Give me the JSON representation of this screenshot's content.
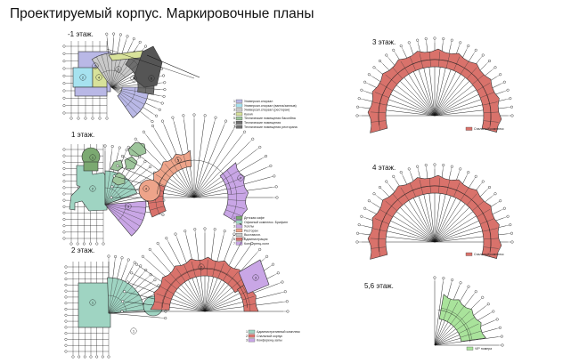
{
  "title": "Проектируемый корпус. Маркировочные планы",
  "colors": {
    "blue": "#b9b8e6",
    "cyan": "#a6e2ef",
    "gray": "#c9c9c9",
    "yellowgreen": "#d8e29a",
    "darkgray": "#6e6e6e",
    "dkgreen": "#7ba971",
    "teal": "#9fd4c2",
    "sage": "#9dc59b",
    "salmon": "#eea48a",
    "red": "#d9726b",
    "purple": "#c9a6e6",
    "lightgreen": "#a9e39b"
  },
  "floors": [
    {
      "id": "m1",
      "label": "-1 этаж.",
      "legend": [
        {
          "num": "1",
          "text": "Универсал.спорзал",
          "color": "blue"
        },
        {
          "num": "2",
          "text": "Универсал.спорзал (ванна/заплыв)",
          "color": "cyan"
        },
        {
          "num": "3",
          "text": "Универсал.спорзал (ресторан)",
          "color": "gray"
        },
        {
          "num": "4",
          "text": "Кухня",
          "color": "yellowgreen"
        },
        {
          "num": "5",
          "text": "Технические помещения бассейна",
          "color": "sage"
        },
        {
          "num": "6",
          "text": "Технические помещения",
          "color": "darkgray"
        },
        {
          "num": "7",
          "text": "Технические помещения ресторана",
          "color": "darkgray"
        }
      ]
    },
    {
      "id": "f1",
      "label": "1 этаж.",
      "legend": [
        {
          "num": "1",
          "text": "Детская кафе",
          "color": "dkgreen"
        },
        {
          "num": "2",
          "text": "Офисный комплекс. Брифинг",
          "color": "teal"
        },
        {
          "num": "3",
          "text": "Холлы",
          "color": "purple"
        },
        {
          "num": "4",
          "text": "Ресторан",
          "color": "salmon"
        },
        {
          "num": "5",
          "text": "Выставочн.",
          "color": "gray"
        },
        {
          "num": "6",
          "text": "Администрация",
          "color": "red"
        },
        {
          "num": "7",
          "text": "Конференц-холл",
          "color": "purple"
        }
      ]
    },
    {
      "id": "f2",
      "label": "2 этаж.",
      "legend": [
        {
          "num": "1",
          "text": "Административный комплекс",
          "color": "teal"
        },
        {
          "num": "2",
          "text": "Спальный корпус",
          "color": "red"
        },
        {
          "num": "3",
          "text": "Конференц-залы",
          "color": "purple"
        }
      ]
    },
    {
      "id": "f3",
      "label": "3 этаж.",
      "legend": [
        {
          "num": "",
          "text": "Спальный комплекс",
          "color": "red"
        }
      ]
    },
    {
      "id": "f4",
      "label": "4 этаж.",
      "legend": [
        {
          "num": "",
          "text": "Спальный комплекс",
          "color": "red"
        }
      ]
    },
    {
      "id": "f56",
      "label": "5,6 этаж.",
      "legend": [
        {
          "num": "",
          "text": "VIP номера",
          "color": "lightgreen"
        }
      ]
    }
  ]
}
